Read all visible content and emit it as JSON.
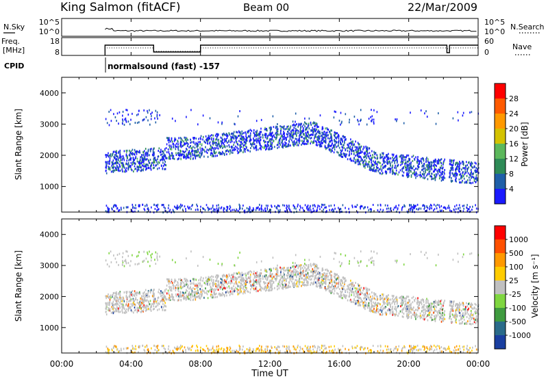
{
  "header": {
    "station": "King Salmon (fitACF)",
    "beam": "Beam 00",
    "date": "22/Mar/2009"
  },
  "top_panels": {
    "nsky_label": "N.Sky",
    "nsky_ticks": [
      "10^5",
      "10^0"
    ],
    "nsearch_label": "N.Search",
    "nsearch_ticks": [
      "10^5",
      "10^0"
    ],
    "freq_label_1": "Freq.",
    "freq_label_2": "[MHz]",
    "freq_ticks": [
      "18",
      "8"
    ],
    "nave_label": "Nave",
    "nave_ticks": [
      "60",
      "0"
    ],
    "cpid_label": "CPID",
    "cpid_text": "normalsound (fast) -157"
  },
  "chart_data": [
    {
      "type": "heatmap",
      "name": "power",
      "ylabel": "Slant Range [km]",
      "yticks": [
        "4000",
        "3000",
        "2000",
        "1000"
      ],
      "ylim": [
        180,
        4500
      ],
      "colorbar_label": "Power [dB]",
      "colorbar_ticks": [
        "28",
        "24",
        "20",
        "16",
        "12",
        "8",
        "4"
      ],
      "colors": [
        "#1a1aff",
        "#1f5fa8",
        "#2e8b57",
        "#5cb85c",
        "#d4c200",
        "#ff9900",
        "#ff5a00",
        "#ff0000"
      ]
    },
    {
      "type": "heatmap",
      "name": "velocity",
      "ylabel": "Slant Range [km]",
      "yticks": [
        "4000",
        "3000",
        "2000",
        "1000"
      ],
      "ylim": [
        180,
        4500
      ],
      "colorbar_label": "Velocity [m s⁻¹]",
      "colorbar_ticks": [
        "1000",
        "500",
        "100",
        "25",
        "-25",
        "-100",
        "-500",
        "-1000"
      ],
      "colors": [
        "#1a3fa0",
        "#2a6b8a",
        "#3f9b3f",
        "#7fd640",
        "#c0c0c0",
        "#ffcc00",
        "#ff9900",
        "#ff5000",
        "#ff0000"
      ]
    }
  ],
  "x_axis": {
    "label": "Time UT",
    "ticks": [
      "00:00",
      "04:00",
      "08:00",
      "12:00",
      "16:00",
      "20:00",
      "00:00"
    ]
  }
}
